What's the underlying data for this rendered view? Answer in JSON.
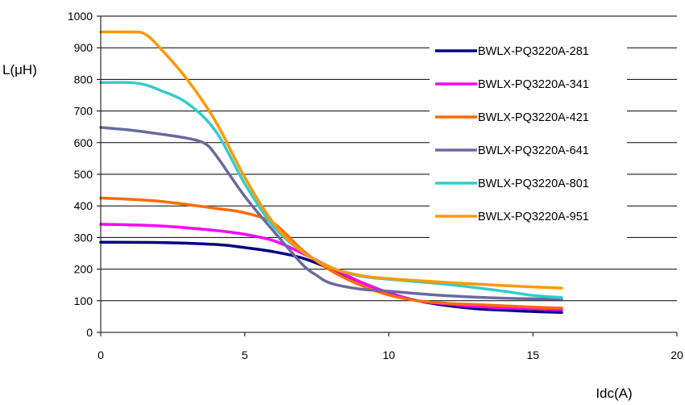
{
  "chart_data": {
    "type": "line",
    "xlabel": "Idc(A)",
    "ylabel": "L(μH)",
    "xlim": [
      0,
      20
    ],
    "ylim": [
      0,
      1000
    ],
    "xticks": [
      0,
      5,
      10,
      15,
      20
    ],
    "yticks": [
      0,
      100,
      200,
      300,
      400,
      500,
      600,
      700,
      800,
      900,
      1000
    ],
    "grid": "horizontal",
    "legend_position": "right, inside plot",
    "series": [
      {
        "name": "BWLX-PQ3220A-281",
        "color": "#000080",
        "x": [
          0,
          2,
          4,
          5,
          6,
          7,
          8,
          9,
          10,
          11,
          12,
          13,
          14,
          15,
          16
        ],
        "y": [
          285,
          284,
          278,
          268,
          255,
          235,
          200,
          160,
          125,
          100,
          85,
          75,
          70,
          66,
          63
        ]
      },
      {
        "name": "BWLX-PQ3220A-341",
        "color": "#ff00ff",
        "x": [
          0,
          2,
          4,
          5,
          6,
          7,
          8,
          9,
          10,
          11,
          12,
          13,
          14,
          15,
          16
        ],
        "y": [
          342,
          337,
          322,
          310,
          290,
          250,
          205,
          160,
          125,
          100,
          90,
          82,
          78,
          75,
          72
        ]
      },
      {
        "name": "BWLX-PQ3220A-421",
        "color": "#ff6a00",
        "x": [
          0,
          2,
          4,
          5,
          6,
          7,
          8,
          9,
          10,
          11,
          12,
          13,
          14,
          15,
          16
        ],
        "y": [
          425,
          415,
          392,
          378,
          345,
          260,
          195,
          150,
          118,
          100,
          92,
          88,
          84,
          80,
          77
        ]
      },
      {
        "name": "BWLX-PQ3220A-641",
        "color": "#6a6aa0",
        "x": [
          0,
          1,
          2,
          3,
          3.6,
          4,
          5,
          6,
          7,
          7.5,
          8,
          9,
          10,
          12,
          14,
          16
        ],
        "y": [
          648,
          640,
          628,
          614,
          598,
          560,
          430,
          320,
          215,
          180,
          155,
          137,
          130,
          116,
          108,
          105
        ]
      },
      {
        "name": "BWLX-PQ3220A-801",
        "color": "#33cccc",
        "x": [
          0,
          1,
          1.5,
          2,
          3,
          4,
          5,
          6,
          7,
          8,
          9,
          10,
          12,
          14,
          15,
          16
        ],
        "y": [
          790,
          790,
          784,
          768,
          725,
          635,
          470,
          335,
          255,
          205,
          178,
          168,
          152,
          130,
          117,
          110
        ]
      },
      {
        "name": "BWLX-PQ3220A-951",
        "color": "#ff9900",
        "x": [
          0,
          1,
          1.5,
          2,
          3,
          4,
          5,
          6,
          7,
          8,
          9,
          10,
          12,
          14,
          16
        ],
        "y": [
          950,
          950,
          945,
          905,
          800,
          665,
          490,
          345,
          255,
          205,
          180,
          170,
          158,
          148,
          140
        ]
      }
    ]
  }
}
